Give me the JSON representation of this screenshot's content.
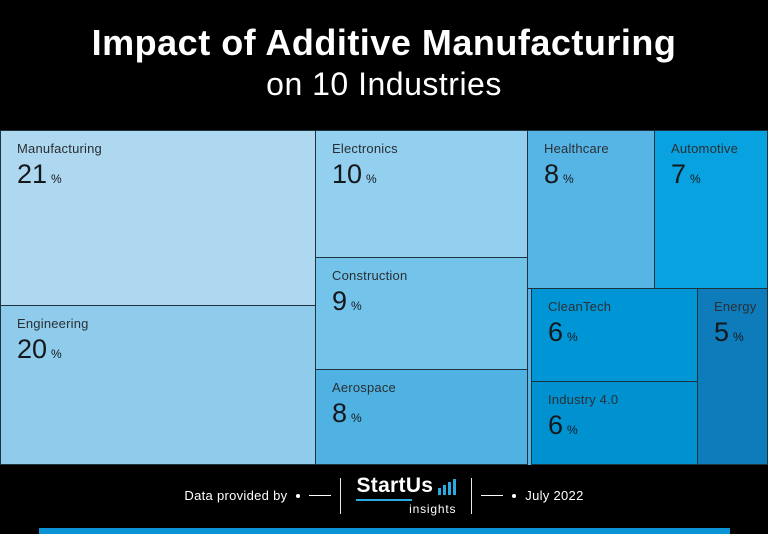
{
  "header": {
    "title_line1": "Impact of Additive Manufacturing",
    "title_line2": "on 10 Industries"
  },
  "chart_data": {
    "type": "treemap",
    "title": "Impact of Additive Manufacturing on 10 Industries",
    "unit": "%",
    "items": [
      {
        "label": "Manufacturing",
        "value": 21,
        "color": "#aed7f0"
      },
      {
        "label": "Engineering",
        "value": 20,
        "color": "#8fcbeb"
      },
      {
        "label": "Electronics",
        "value": 10,
        "color": "#93cfee"
      },
      {
        "label": "Construction",
        "value": 9,
        "color": "#73c3ea"
      },
      {
        "label": "Aerospace",
        "value": 8,
        "color": "#4fb2e3"
      },
      {
        "label": "Healthcare",
        "value": 8,
        "color": "#57b5e5"
      },
      {
        "label": "Automotive",
        "value": 7,
        "color": "#09a2e0"
      },
      {
        "label": "CleanTech",
        "value": 6,
        "color": "#0096d6"
      },
      {
        "label": "Industry 4.0",
        "value": 6,
        "color": "#0092d0"
      },
      {
        "label": "Energy",
        "value": 5,
        "color": "#0e7cbb"
      }
    ],
    "background_sliver_color": "#57b5e5"
  },
  "footer": {
    "provided_by": "Data provided by",
    "date": "July 2022",
    "logo": {
      "text": "StartUs",
      "sub": "insights"
    },
    "accent_color": "#29abe2",
    "bar_color": "#0a93d5"
  }
}
